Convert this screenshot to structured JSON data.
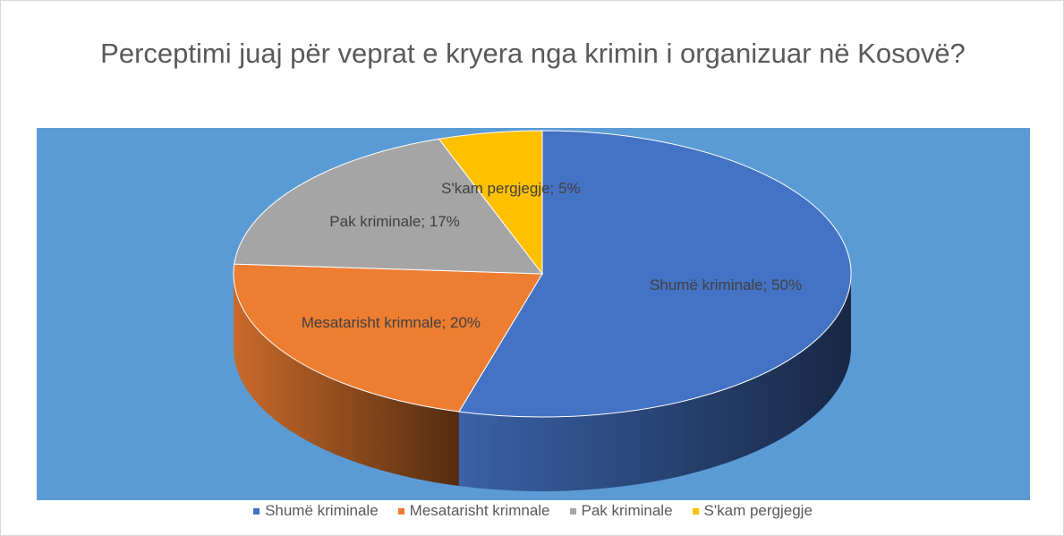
{
  "chart_data": {
    "type": "pie",
    "title": "Perceptimi juaj për veprat e kryera nga krimin i organizuar në Kosovë?",
    "categories": [
      "Shumë kriminale",
      "Mesatarisht krimnale",
      "Pak kriminale",
      "S'kam pergjegje"
    ],
    "values": [
      50,
      20,
      17,
      5
    ],
    "value_labels": [
      "Shumë kriminale; 50%",
      "Mesatarisht krimnale; 20%",
      "Pak kriminale; 17%",
      "S'kam pergjegje; 5%"
    ],
    "colors": [
      "#4472c4",
      "#ed7d31",
      "#a5a5a5",
      "#ffc000"
    ],
    "legend": "bottom"
  }
}
